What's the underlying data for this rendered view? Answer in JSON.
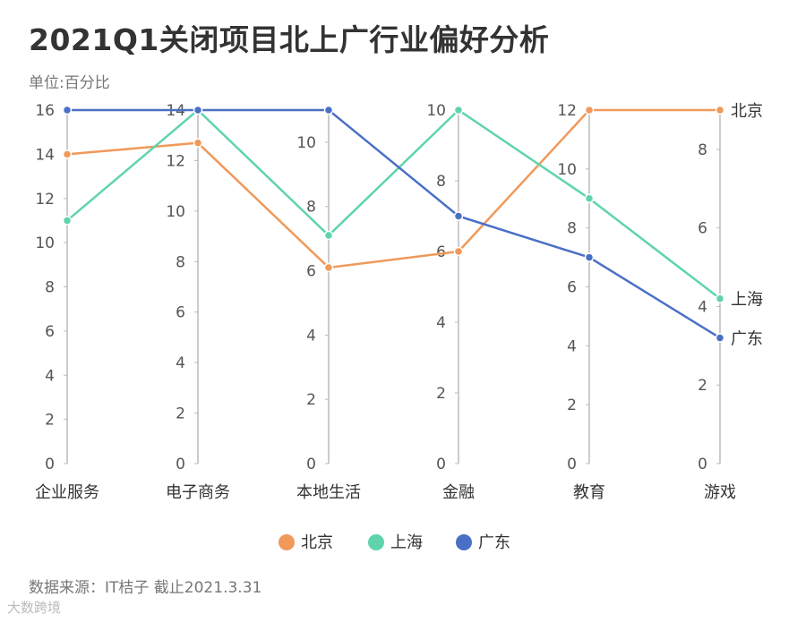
{
  "title": "2021Q1关闭项目北上广行业偏好分析",
  "subtitle": "单位:百分比",
  "source": "数据来源：IT桔子 截止2021.3.31",
  "watermark": "大数跨境",
  "colors": {
    "北京": "#f0995a",
    "上海": "#5fd4ac",
    "广东": "#4a6fc7",
    "axis": "#bbbbbb"
  },
  "chart_data": {
    "type": "parallel",
    "title": "2021Q1关闭项目北上广行业偏好分析",
    "categories": [
      "企业服务",
      "电子商务",
      "本地生活",
      "金融",
      "教育",
      "游戏"
    ],
    "axes": [
      {
        "name": "企业服务",
        "range": [
          0,
          16
        ],
        "ticks": [
          0,
          2,
          4,
          6,
          8,
          10,
          12,
          14,
          16
        ]
      },
      {
        "name": "电子商务",
        "range": [
          0,
          14
        ],
        "ticks": [
          0,
          2,
          4,
          6,
          8,
          10,
          12,
          14
        ]
      },
      {
        "name": "本地生活",
        "range": [
          0,
          11
        ],
        "ticks": [
          0,
          2,
          4,
          6,
          8,
          10
        ]
      },
      {
        "name": "金融",
        "range": [
          0,
          10
        ],
        "ticks": [
          0,
          2,
          4,
          6,
          8,
          10
        ]
      },
      {
        "name": "教育",
        "range": [
          0,
          12
        ],
        "ticks": [
          0,
          2,
          4,
          6,
          8,
          10,
          12
        ]
      },
      {
        "name": "游戏",
        "range": [
          0,
          9
        ],
        "ticks": [
          0,
          2,
          4,
          6,
          8
        ]
      }
    ],
    "series": [
      {
        "name": "北京",
        "values": [
          14,
          12.7,
          6.1,
          6,
          12,
          9
        ]
      },
      {
        "name": "上海",
        "values": [
          11,
          14,
          7.1,
          10,
          9,
          4.2
        ]
      },
      {
        "name": "广东",
        "values": [
          16,
          14,
          11,
          7,
          7,
          3.2
        ]
      }
    ],
    "legend": "bottom-center"
  }
}
